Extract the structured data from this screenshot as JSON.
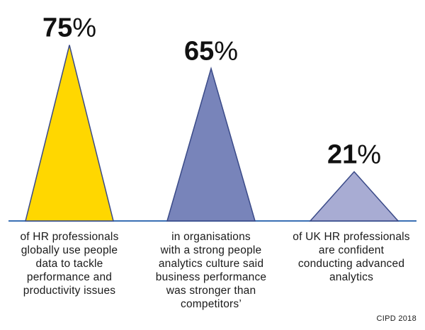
{
  "chart_data": {
    "type": "bar",
    "categories": [
      "of HR professionals globally use people data to tackle performance and productivity issues",
      "in organisations with a strong people analytics culture said business performance was stronger than competitors’",
      "of UK HR professionals are confident conducting advanced analytics"
    ],
    "values": [
      75,
      65,
      21
    ],
    "value_labels": [
      {
        "number": "75",
        "unit": "%"
      },
      {
        "number": "65",
        "unit": "%"
      },
      {
        "number": "21",
        "unit": "%"
      }
    ],
    "captions": [
      [
        "of HR professionals",
        "globally use people",
        "data to tackle",
        "performance and",
        "productivity issues"
      ],
      [
        "in organisations",
        "with a strong people",
        "analytics culture said",
        "business performance",
        "was stronger than",
        "competitors’"
      ],
      [
        "of UK HR professionals",
        "are confident",
        "conducting advanced",
        "analytics"
      ]
    ],
    "ylim": [
      0,
      100
    ],
    "grid": false,
    "legend": "none",
    "colors": {
      "bars": [
        "#ffd700",
        "#7884ba",
        "#a8acd3"
      ],
      "stroke": "#3a4a88",
      "baseline": "#3a6fb4"
    }
  },
  "source": "CIPD 2018"
}
